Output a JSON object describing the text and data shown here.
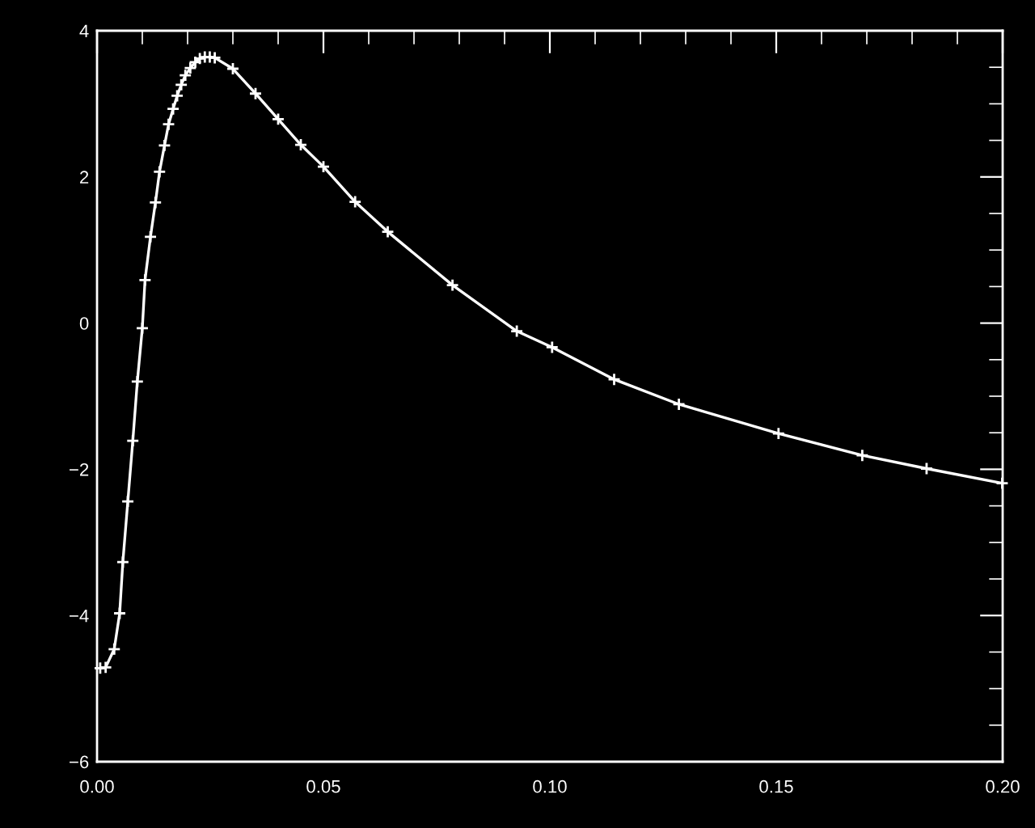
{
  "chart_data": {
    "type": "line",
    "marker": "cross",
    "line_style": "solid",
    "color": "#ffffff",
    "x": [
      0.0007,
      0.0019,
      0.0038,
      0.005,
      0.0057,
      0.0068,
      0.0079,
      0.0089,
      0.01,
      0.0106,
      0.0118,
      0.0129,
      0.0138,
      0.0149,
      0.0158,
      0.0168,
      0.0177,
      0.0186,
      0.0195,
      0.0206,
      0.0217,
      0.0227,
      0.0238,
      0.0249,
      0.026,
      0.03,
      0.035,
      0.04,
      0.045,
      0.05,
      0.057,
      0.0642,
      0.0785,
      0.0927,
      0.1005,
      0.1142,
      0.1285,
      0.1505,
      0.169,
      0.1832,
      0.1999
    ],
    "values": [
      -4.72,
      -4.71,
      -4.46,
      -3.97,
      -3.27,
      -2.44,
      -1.61,
      -0.8,
      -0.07,
      0.59,
      1.18,
      1.65,
      2.07,
      2.43,
      2.72,
      2.93,
      3.11,
      3.26,
      3.39,
      3.49,
      3.57,
      3.62,
      3.64,
      3.64,
      3.63,
      3.48,
      3.14,
      2.79,
      2.44,
      2.14,
      1.66,
      1.25,
      0.52,
      -0.11,
      -0.33,
      -0.77,
      -1.11,
      -1.51,
      -1.81,
      -1.99,
      -2.19
    ],
    "xlim": [
      0,
      0.2
    ],
    "xticks": [
      {
        "value": 0,
        "label": "0.00"
      },
      {
        "value": 0.05,
        "label": "0.05"
      },
      {
        "value": 0.1,
        "label": "0.10"
      },
      {
        "value": 0.15,
        "label": "0.15"
      },
      {
        "value": 0.2,
        "label": "0.20"
      }
    ],
    "ylim": [
      -6,
      4
    ],
    "yticks": [
      -6,
      -4,
      -2,
      0,
      2,
      4
    ],
    "grid": false,
    "legend": false
  }
}
